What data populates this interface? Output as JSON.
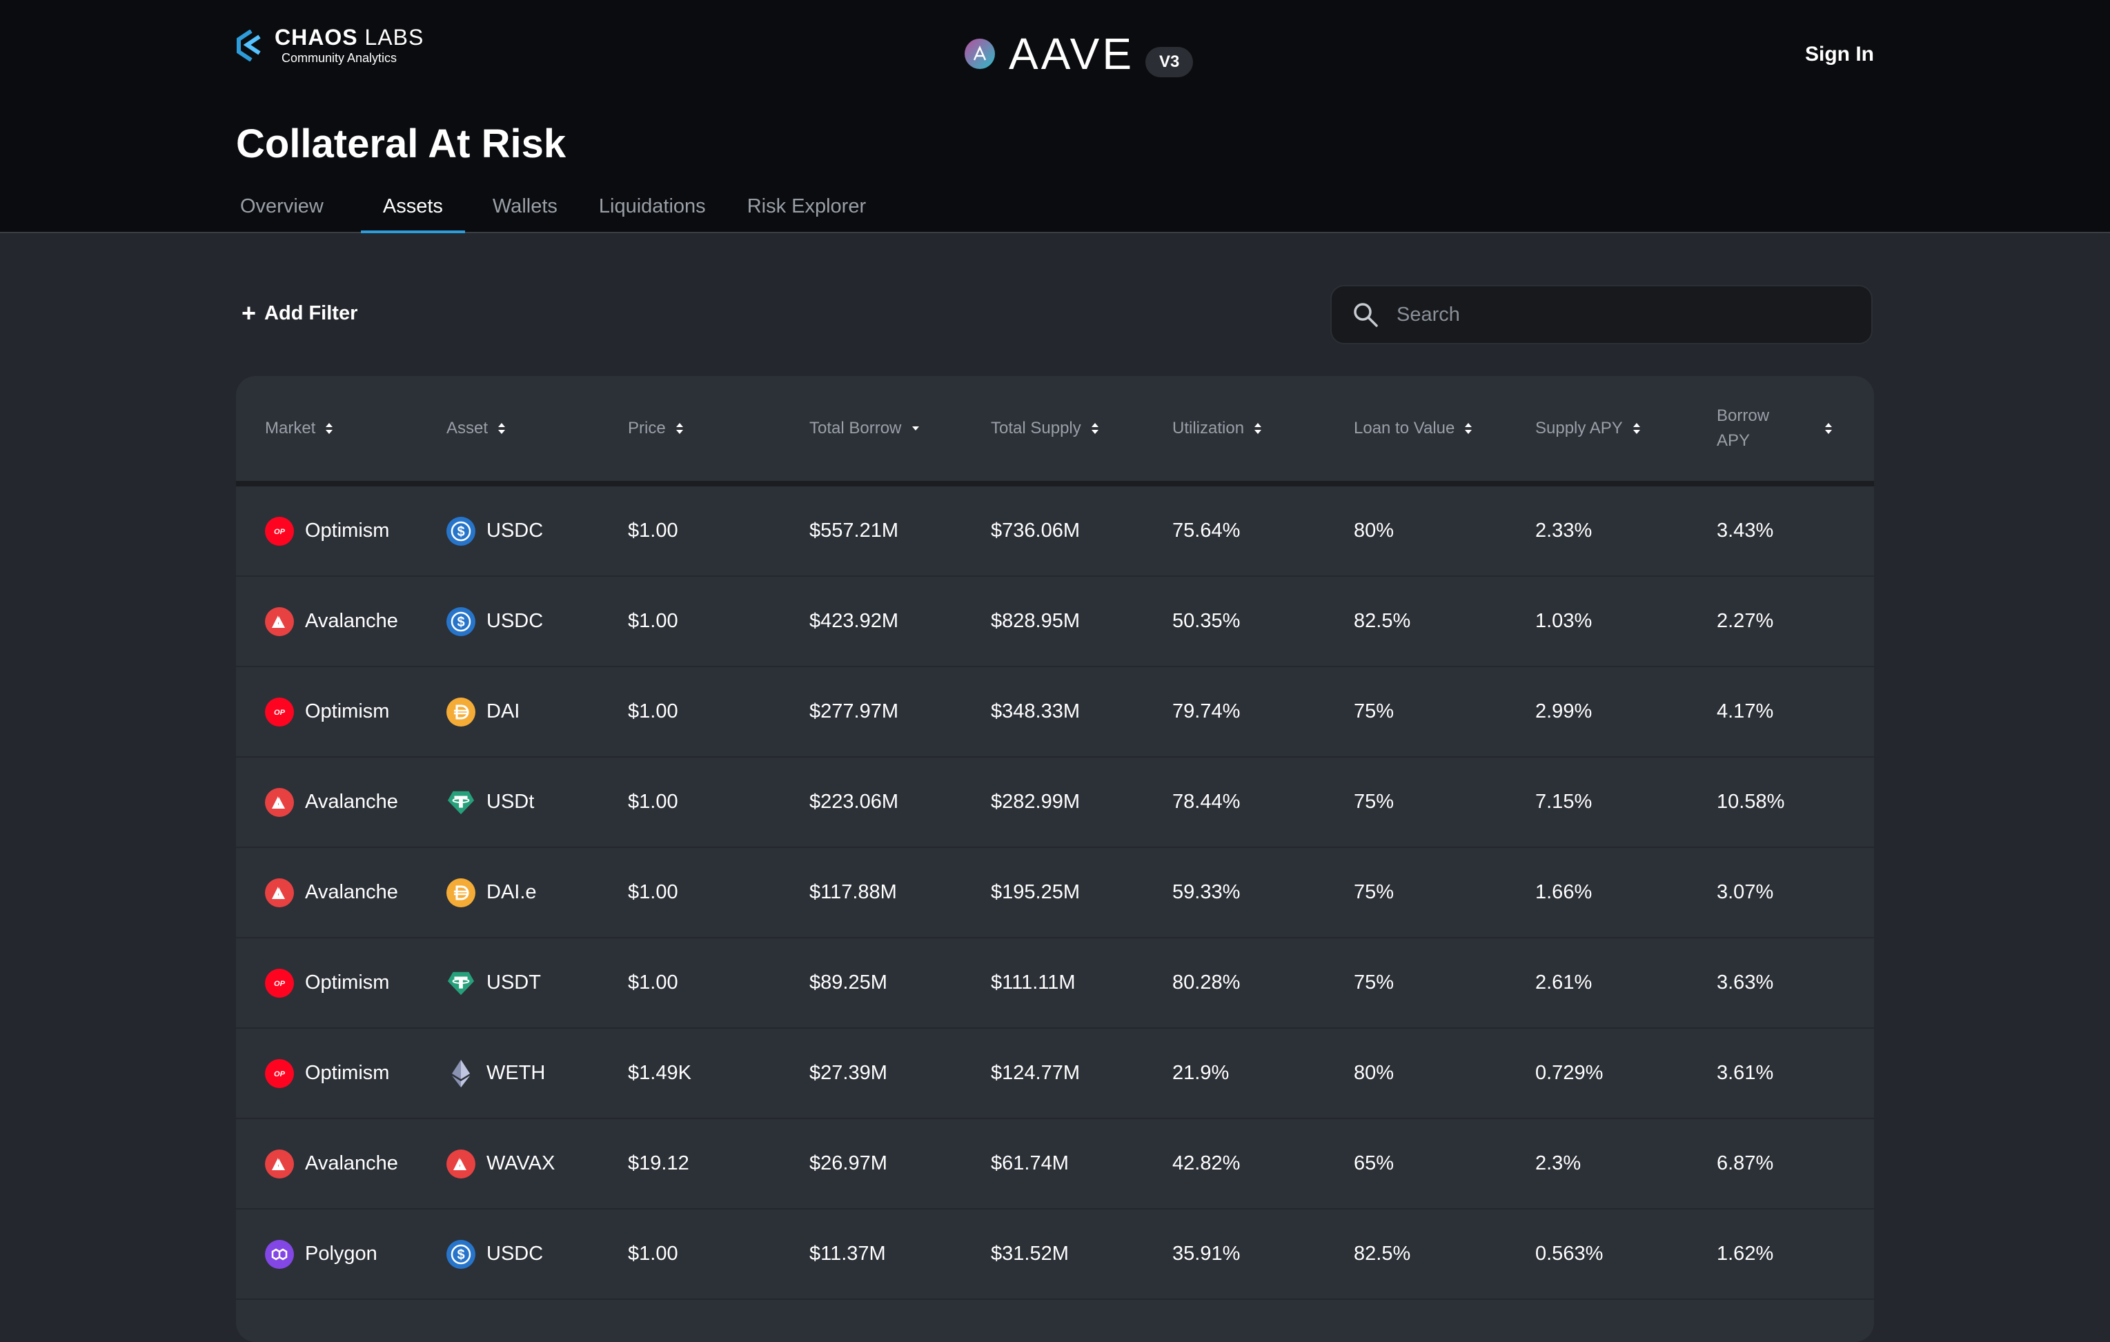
{
  "brand": {
    "name_bold": "CHAOS",
    "name_light": " LABS",
    "subtitle": "Community Analytics"
  },
  "protocol": {
    "name": "AAVE",
    "version": "V3"
  },
  "header": {
    "sign_in_label": "Sign In"
  },
  "page": {
    "title": "Collateral At Risk"
  },
  "tabs": [
    {
      "label": "Overview",
      "active": false
    },
    {
      "label": "Assets",
      "active": true
    },
    {
      "label": "Wallets",
      "active": false
    },
    {
      "label": "Liquidations",
      "active": false
    },
    {
      "label": "Risk Explorer",
      "active": false
    }
  ],
  "toolbar": {
    "add_filter_label": "Add Filter"
  },
  "search": {
    "placeholder": "Search",
    "value": ""
  },
  "table": {
    "columns": [
      {
        "label": "Market",
        "sort": "both"
      },
      {
        "label": "Asset",
        "sort": "both"
      },
      {
        "label": "Price",
        "sort": "both"
      },
      {
        "label": "Total Borrow",
        "sort": "desc"
      },
      {
        "label": "Total Supply",
        "sort": "both"
      },
      {
        "label": "Utilization",
        "sort": "both"
      },
      {
        "label": "Loan to Value",
        "sort": "both"
      },
      {
        "label": "Supply APY",
        "sort": "both"
      },
      {
        "label": "Borrow APY",
        "sort": "both"
      }
    ],
    "rows": [
      {
        "market": "Optimism",
        "market_icon": "optimism-icon",
        "asset": "USDC",
        "asset_icon": "usdc-icon",
        "price": "$1.00",
        "total_borrow": "$557.21M",
        "total_supply": "$736.06M",
        "utilization": "75.64%",
        "ltv": "80%",
        "supply_apy": "2.33%",
        "borrow_apy": "3.43%"
      },
      {
        "market": "Avalanche",
        "market_icon": "avalanche-icon",
        "asset": "USDC",
        "asset_icon": "usdc-icon",
        "price": "$1.00",
        "total_borrow": "$423.92M",
        "total_supply": "$828.95M",
        "utilization": "50.35%",
        "ltv": "82.5%",
        "supply_apy": "1.03%",
        "borrow_apy": "2.27%"
      },
      {
        "market": "Optimism",
        "market_icon": "optimism-icon",
        "asset": "DAI",
        "asset_icon": "dai-icon",
        "price": "$1.00",
        "total_borrow": "$277.97M",
        "total_supply": "$348.33M",
        "utilization": "79.74%",
        "ltv": "75%",
        "supply_apy": "2.99%",
        "borrow_apy": "4.17%"
      },
      {
        "market": "Avalanche",
        "market_icon": "avalanche-icon",
        "asset": "USDt",
        "asset_icon": "tether-icon",
        "price": "$1.00",
        "total_borrow": "$223.06M",
        "total_supply": "$282.99M",
        "utilization": "78.44%",
        "ltv": "75%",
        "supply_apy": "7.15%",
        "borrow_apy": "10.58%"
      },
      {
        "market": "Avalanche",
        "market_icon": "avalanche-icon",
        "asset": "DAI.e",
        "asset_icon": "dai-icon",
        "price": "$1.00",
        "total_borrow": "$117.88M",
        "total_supply": "$195.25M",
        "utilization": "59.33%",
        "ltv": "75%",
        "supply_apy": "1.66%",
        "borrow_apy": "3.07%"
      },
      {
        "market": "Optimism",
        "market_icon": "optimism-icon",
        "asset": "USDT",
        "asset_icon": "tether-icon",
        "price": "$1.00",
        "total_borrow": "$89.25M",
        "total_supply": "$111.11M",
        "utilization": "80.28%",
        "ltv": "75%",
        "supply_apy": "2.61%",
        "borrow_apy": "3.63%"
      },
      {
        "market": "Optimism",
        "market_icon": "optimism-icon",
        "asset": "WETH",
        "asset_icon": "ethereum-icon",
        "price": "$1.49K",
        "total_borrow": "$27.39M",
        "total_supply": "$124.77M",
        "utilization": "21.9%",
        "ltv": "80%",
        "supply_apy": "0.729%",
        "borrow_apy": "3.61%"
      },
      {
        "market": "Avalanche",
        "market_icon": "avalanche-icon",
        "asset": "WAVAX",
        "asset_icon": "avalanche-icon",
        "price": "$19.12",
        "total_borrow": "$26.97M",
        "total_supply": "$61.74M",
        "utilization": "42.82%",
        "ltv": "65%",
        "supply_apy": "2.3%",
        "borrow_apy": "6.87%"
      },
      {
        "market": "Polygon",
        "market_icon": "polygon-icon",
        "asset": "USDC",
        "asset_icon": "usdc-icon",
        "price": "$1.00",
        "total_borrow": "$11.37M",
        "total_supply": "$31.52M",
        "utilization": "35.91%",
        "ltv": "82.5%",
        "supply_apy": "0.563%",
        "borrow_apy": "1.62%"
      }
    ]
  },
  "colors": {
    "header_bg": "#0b0c0f",
    "page_bg": "#24272d",
    "table_bg": "#2c3037",
    "accent": "#2d9cdb",
    "optimism": "#ff0420",
    "avalanche": "#e84142",
    "usdc": "#2775ca",
    "dai": "#f5ac37",
    "tether": "#26a17b",
    "polygon": "#8247e5"
  }
}
